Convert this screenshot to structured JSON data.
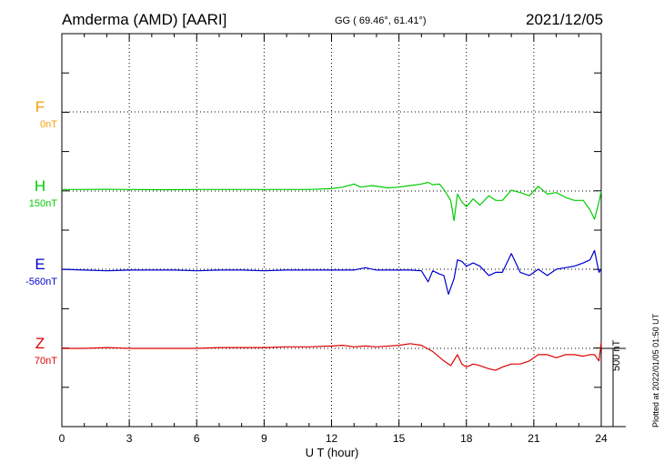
{
  "header": {
    "station": "Amderma (AMD)  [AARI]",
    "coords": "GG ( 69.46°,  61.41°)",
    "date": "2021/12/05"
  },
  "components": [
    {
      "letter": "F",
      "base": "0nT",
      "color": "#f5a000"
    },
    {
      "letter": "H",
      "base": "150nT",
      "color": "#00cc00"
    },
    {
      "letter": "E",
      "base": "-560nT",
      "color": "#0000cc"
    },
    {
      "letter": "Z",
      "base": "70nT",
      "color": "#dd0000"
    }
  ],
  "scale_label": "500 nT",
  "plotted_note": "Plotted at 2022/01/05 01:50 UT",
  "chart_data": {
    "type": "line",
    "xlabel": "U T (hour)",
    "xlim": [
      0,
      24
    ],
    "xticks": [
      "0",
      "3",
      "6",
      "9",
      "12",
      "15",
      "18",
      "21",
      "24"
    ],
    "series": [
      {
        "name": "H",
        "x": [
          0,
          1,
          2,
          3,
          4,
          5,
          6,
          7,
          8,
          9,
          10,
          11,
          12,
          12.5,
          13,
          13.3,
          13.8,
          14.5,
          15,
          15.5,
          16,
          16.3,
          16.5,
          16.8,
          17,
          17.3,
          17.45,
          17.6,
          17.8,
          18,
          18.3,
          18.6,
          19,
          19.3,
          19.6,
          20,
          20.4,
          20.8,
          21.2,
          21.6,
          22,
          22.4,
          22.8,
          23.2,
          23.5,
          23.7,
          23.9,
          24
        ],
        "y": [
          10,
          10,
          11,
          10,
          9,
          9,
          10,
          10,
          10,
          10,
          10,
          10,
          15,
          25,
          45,
          25,
          35,
          20,
          25,
          35,
          45,
          55,
          40,
          45,
          10,
          -60,
          -190,
          -20,
          -70,
          -100,
          -50,
          -90,
          -30,
          -60,
          -60,
          5,
          -10,
          -30,
          30,
          -20,
          -10,
          -40,
          -60,
          -60,
          -120,
          -180,
          -70,
          0
        ]
      },
      {
        "name": "E",
        "x": [
          0,
          1,
          2,
          3,
          4,
          5,
          6,
          7,
          8,
          9,
          10,
          11,
          12,
          13,
          13.5,
          14,
          14.5,
          15,
          15.5,
          16,
          16.3,
          16.5,
          16.8,
          17,
          17.2,
          17.45,
          17.6,
          17.8,
          18,
          18.3,
          18.6,
          19,
          19.3,
          19.6,
          20,
          20.4,
          20.8,
          21.2,
          21.6,
          22,
          22.4,
          22.8,
          23.2,
          23.5,
          23.7,
          23.9,
          24
        ],
        "y": [
          0,
          -5,
          -10,
          -5,
          -5,
          -5,
          -10,
          -5,
          -5,
          -10,
          -5,
          -5,
          -5,
          -5,
          10,
          -5,
          -5,
          -5,
          -5,
          -10,
          -80,
          -10,
          -30,
          -40,
          -160,
          -60,
          60,
          50,
          20,
          40,
          20,
          -40,
          -20,
          -20,
          100,
          -20,
          -40,
          0,
          -40,
          0,
          10,
          20,
          40,
          60,
          120,
          -20,
          0
        ]
      },
      {
        "name": "Z",
        "x": [
          0,
          1,
          2,
          3,
          4,
          5,
          6,
          7,
          8,
          9,
          10,
          11,
          12,
          12.5,
          13,
          13.5,
          14,
          15,
          15.5,
          16,
          16.5,
          17,
          17.3,
          17.6,
          17.8,
          18,
          18.3,
          18.6,
          19,
          19.3,
          19.6,
          20,
          20.4,
          20.8,
          21.2,
          21.6,
          22,
          22.4,
          22.8,
          23.2,
          23.5,
          23.7,
          23.9,
          24
        ],
        "y": [
          0,
          0,
          5,
          0,
          0,
          0,
          0,
          5,
          5,
          5,
          10,
          10,
          15,
          20,
          10,
          15,
          10,
          20,
          30,
          20,
          -20,
          -80,
          -110,
          -40,
          -100,
          -120,
          -100,
          -110,
          -130,
          -140,
          -120,
          -100,
          -100,
          -80,
          -40,
          -40,
          -60,
          -40,
          -40,
          -50,
          -40,
          -40,
          -80,
          40
        ]
      }
    ]
  }
}
